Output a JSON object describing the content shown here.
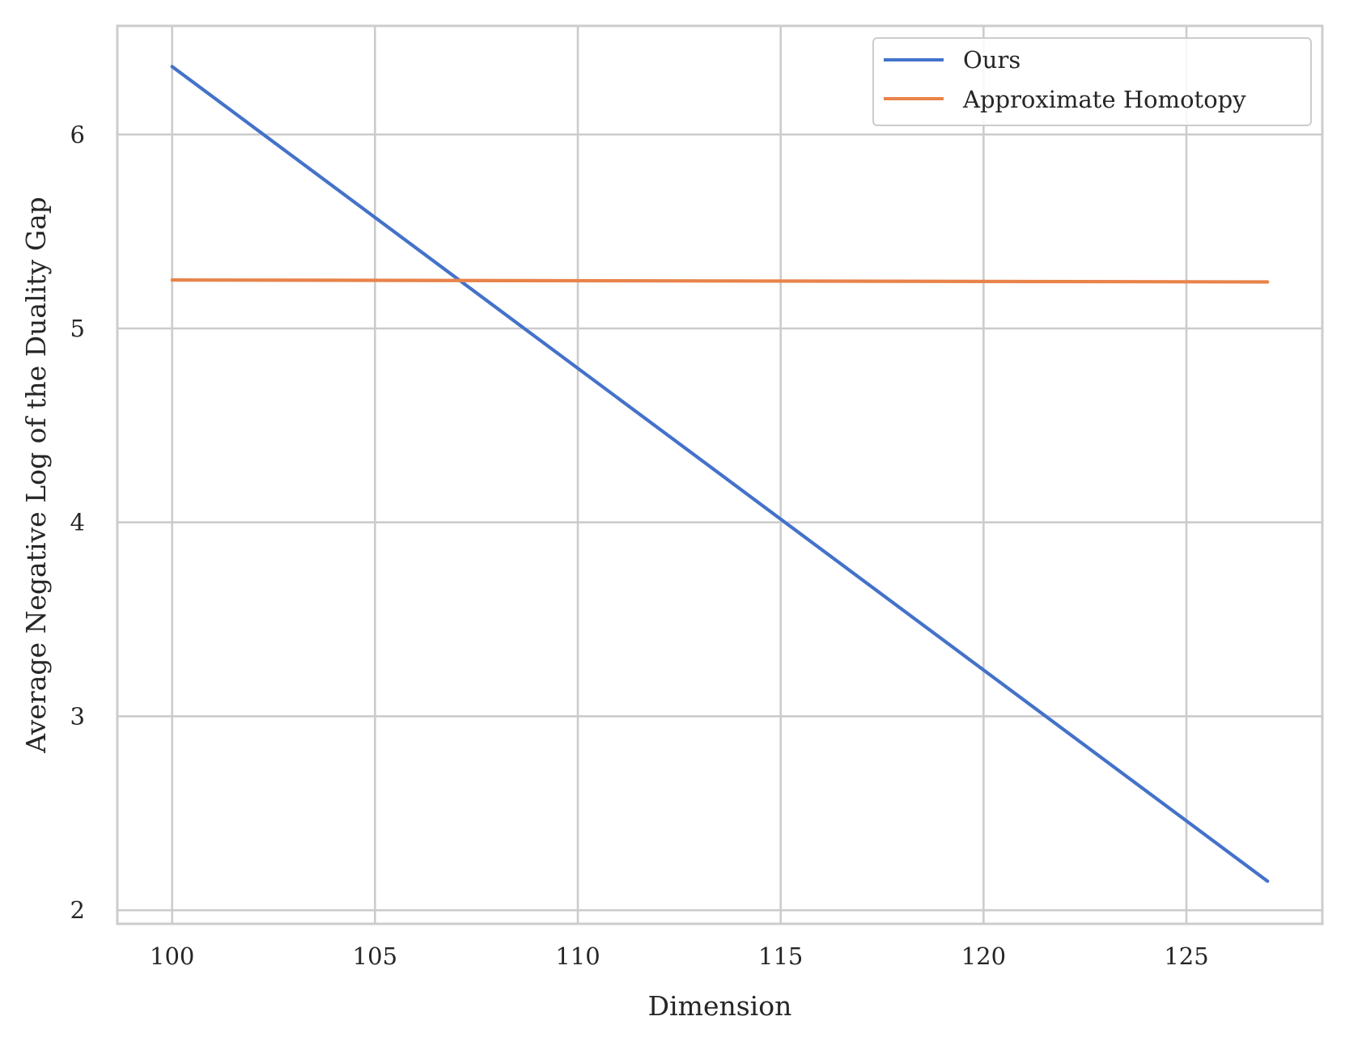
{
  "chart_data": {
    "type": "line",
    "xlabel": "Dimension",
    "ylabel": "Average Negative Log of the Duality Gap",
    "xlim": [
      98.65,
      128.35
    ],
    "ylim": [
      1.93,
      6.56
    ],
    "xticks": [
      100,
      105,
      110,
      115,
      120,
      125
    ],
    "yticks": [
      2,
      3,
      4,
      5,
      6
    ],
    "grid": true,
    "legend_position": "top-right",
    "series": [
      {
        "name": "Ours",
        "color": "#4472ca",
        "x": [
          100,
          127
        ],
        "y": [
          6.35,
          2.15
        ]
      },
      {
        "name": "Approximate Homotopy",
        "color": "#e8834a",
        "x": [
          100,
          127
        ],
        "y": [
          5.25,
          5.24
        ]
      }
    ]
  }
}
